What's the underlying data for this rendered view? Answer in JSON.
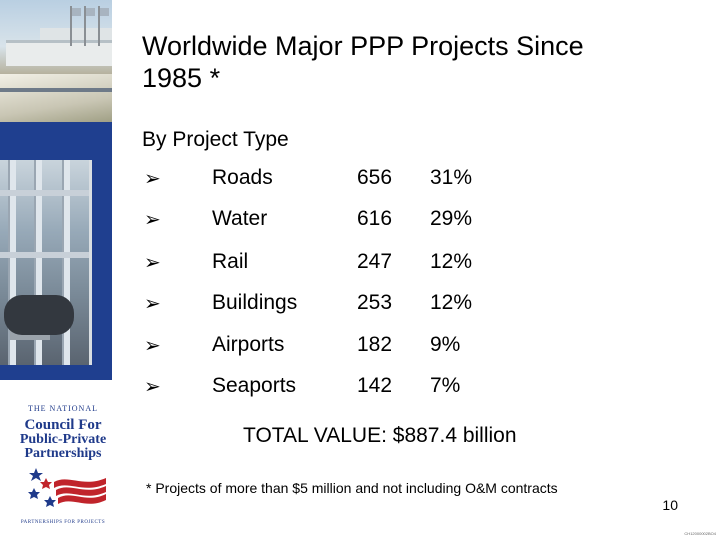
{
  "slide": {
    "title_line1": "Worldwide Major PPP Projects Since",
    "title_line2": "1985 *",
    "subtitle": "By Project Type",
    "bullet_glyph": "➢",
    "rows": [
      {
        "type": "Roads",
        "count": "656",
        "percent": "31%"
      },
      {
        "type": "Water",
        "count": "616",
        "percent": "29%"
      },
      {
        "type": "Rail",
        "count": "247",
        "percent": "12%"
      },
      {
        "type": "Buildings",
        "count": "253",
        "percent": "12%"
      },
      {
        "type": "Airports",
        "count": "182",
        "percent": "9%"
      },
      {
        "type": "Seaports",
        "count": "142",
        "percent": "7%"
      }
    ],
    "total": "TOTAL VALUE:  $887.4 billion",
    "footnote": "* Projects of more than $5 million and not including O&M contracts",
    "page_number": "10",
    "slide_code": "CH12000002BO4"
  },
  "logo": {
    "line1": "THE NATIONAL",
    "line2": "Council For",
    "line3": "Public-Private",
    "line4": "Partnerships",
    "tagline": "PARTNERSHIPS FOR PROJECTS"
  },
  "colors": {
    "sidebar_blue": "#1f3f8f",
    "logo_blue": "#1f3a8a",
    "logo_red": "#c0242b"
  }
}
